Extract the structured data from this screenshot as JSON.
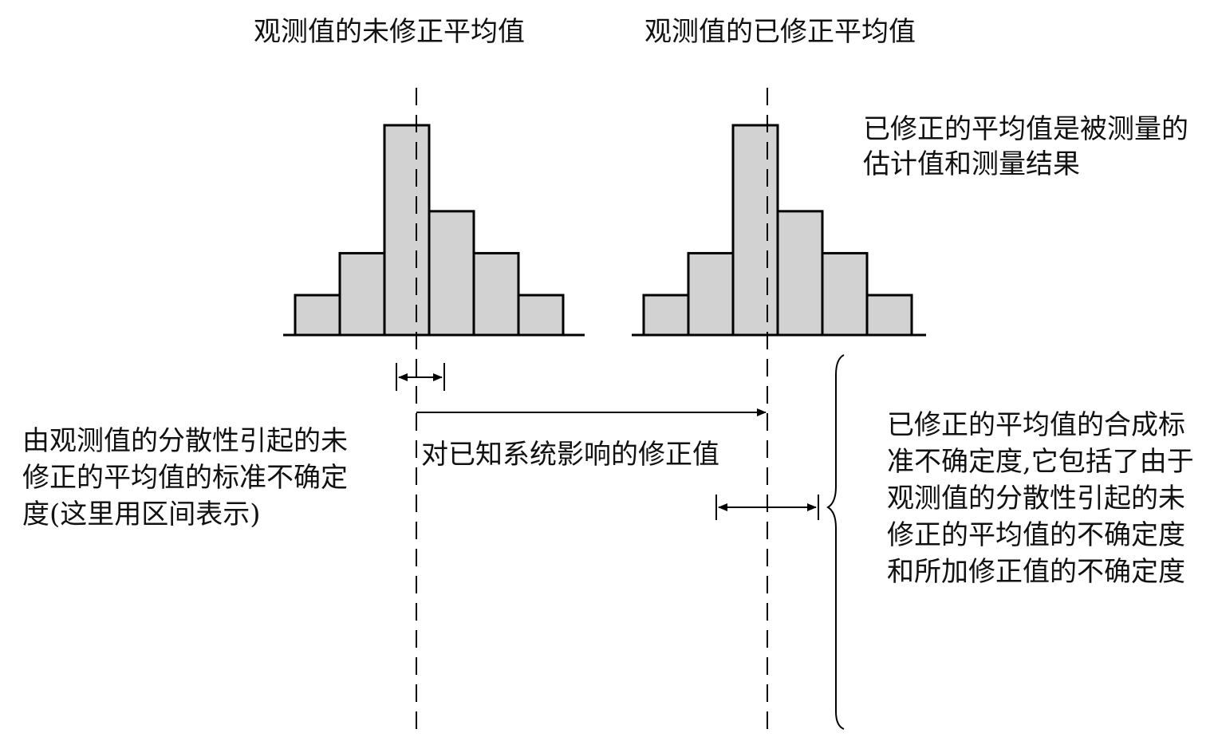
{
  "labels": {
    "uncorrected_mean": "观测值的未修正平均值",
    "corrected_mean": "观测值的已修正平均值",
    "corrected_mean_note": "已修正的平均值是被测量的估计值和测量结果",
    "uncorrected_uncertainty_note": "由观测值的分散性引起的未修正的平均值的标准不确定度(这里用区间表示)",
    "correction_note": "对已知系统影响的修正值",
    "combined_uncertainty_note": "已修正的平均值的合成标准不确定度,它包括了由于观测值的分散性引起的未修正的平均值的不确定度和所加修正值的不确定度"
  },
  "histogram": {
    "bar_heights_relative": [
      0.19,
      0.39,
      1.0,
      0.59,
      0.39,
      0.19
    ]
  },
  "colors": {
    "bar_fill": "#d2d2d2",
    "line": "#000000"
  }
}
